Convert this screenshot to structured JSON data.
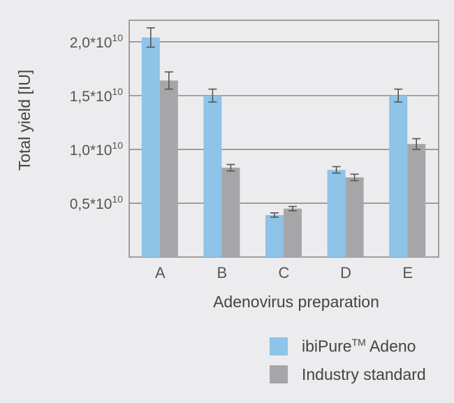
{
  "chart_data": {
    "type": "bar",
    "xlabel": "Adenovirus preparation",
    "ylabel": "Total yield [IU]",
    "categories": [
      "A",
      "B",
      "C",
      "D",
      "E"
    ],
    "ylim": [
      0,
      2.2
    ],
    "y_unit_multiplier": "×10^10",
    "y_ticks": [
      {
        "value": 0.5,
        "mantissa": "0,5",
        "op": "*10",
        "exp": "10"
      },
      {
        "value": 1.0,
        "mantissa": "1,0",
        "op": "*10",
        "exp": "10"
      },
      {
        "value": 1.5,
        "mantissa": "1,5",
        "op": "*10",
        "exp": "10"
      },
      {
        "value": 2.0,
        "mantissa": "2,0",
        "op": "*10",
        "exp": "10"
      }
    ],
    "grid": true,
    "legend_position": "bottom-right",
    "series": [
      {
        "name_main": "ibiPure",
        "name_sup": "TM",
        "name_rest": " Adeno",
        "color": "#8fc3e8",
        "values": [
          2.04,
          1.5,
          0.39,
          0.81,
          1.5
        ],
        "errors": [
          0.09,
          0.06,
          0.02,
          0.03,
          0.06
        ]
      },
      {
        "name": "Industry standard",
        "color": "#a6a6a8",
        "values": [
          1.64,
          0.83,
          0.45,
          0.74,
          1.05
        ],
        "errors": [
          0.08,
          0.03,
          0.02,
          0.03,
          0.05
        ]
      }
    ]
  }
}
